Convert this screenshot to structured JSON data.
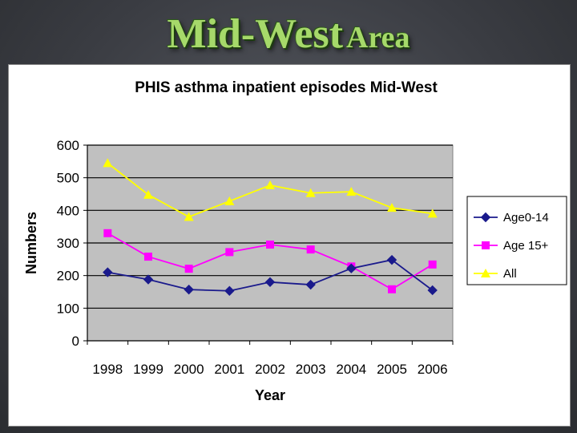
{
  "slide": {
    "title_main": "Mid-West",
    "title_sub": "Area"
  },
  "chart_data": {
    "type": "line",
    "title": "PHIS asthma inpatient episodes Mid-West",
    "xlabel": "Year",
    "ylabel": "Numbers",
    "categories": [
      "1998",
      "1999",
      "2000",
      "2001",
      "2002",
      "2003",
      "2004",
      "2005",
      "2006"
    ],
    "ylim": [
      0,
      600
    ],
    "yticks": [
      0,
      100,
      200,
      300,
      400,
      500,
      600
    ],
    "grid": true,
    "legend_position": "right",
    "series": [
      {
        "name": "Age0-14",
        "color": "#1a1a8c",
        "marker": "diamond",
        "values": [
          210,
          188,
          157,
          153,
          180,
          172,
          222,
          248,
          155
        ]
      },
      {
        "name": "Age 15+",
        "color": "#ff00ff",
        "marker": "square",
        "values": [
          330,
          258,
          221,
          272,
          295,
          280,
          228,
          158,
          234
        ]
      },
      {
        "name": "All",
        "color": "#ffff00",
        "marker": "triangle",
        "values": [
          545,
          448,
          380,
          428,
          477,
          453,
          457,
          408,
          390
        ]
      }
    ]
  }
}
